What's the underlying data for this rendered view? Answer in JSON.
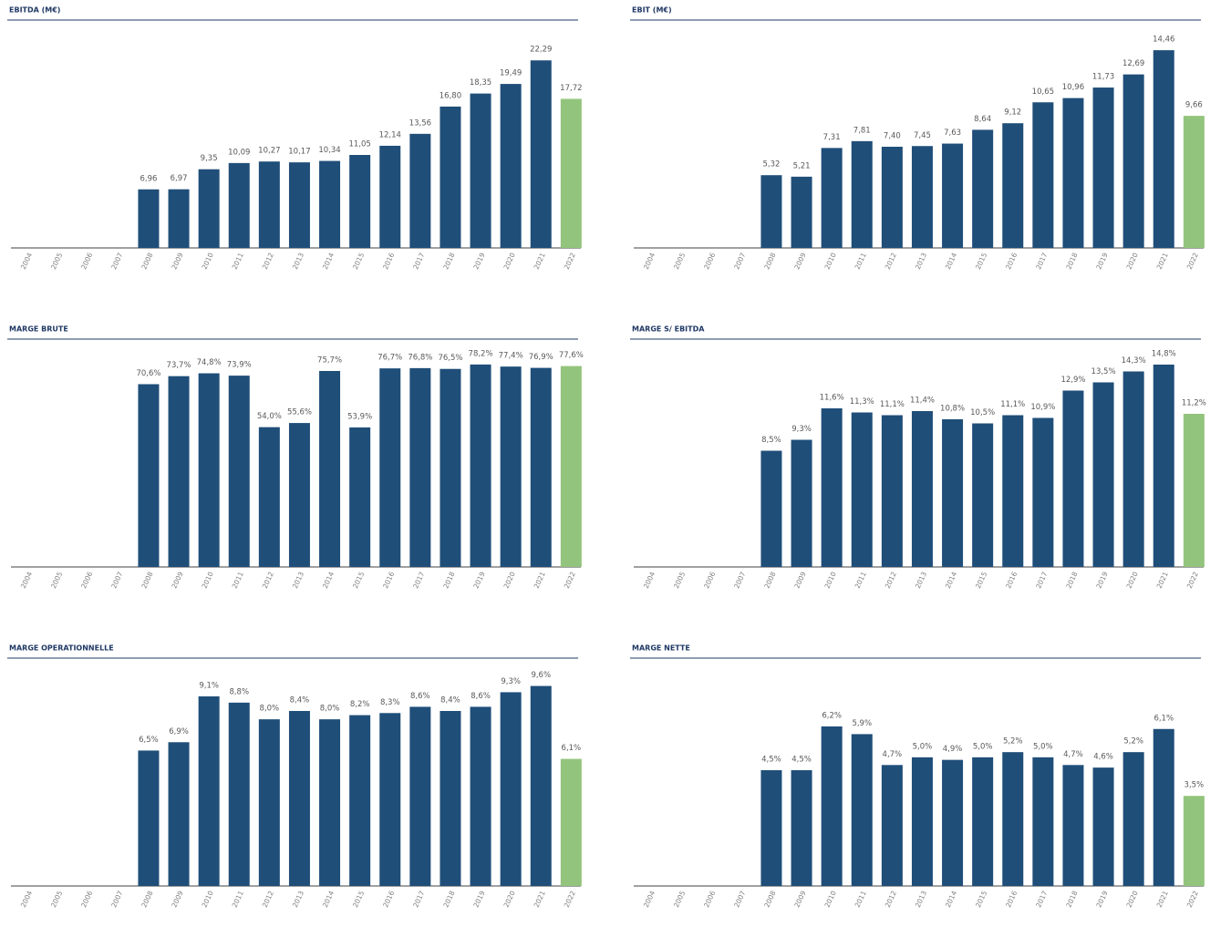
{
  "chart_data": [
    {
      "type": "bar",
      "title": "EBITDA (M€)",
      "categories": [
        "2004",
        "2005",
        "2006",
        "2007",
        "2008",
        "2009",
        "2010",
        "2011",
        "2012",
        "2013",
        "2014",
        "2015",
        "2016",
        "2017",
        "2018",
        "2019",
        "2020",
        "2021",
        "2022"
      ],
      "values": [
        null,
        null,
        null,
        null,
        6.96,
        6.97,
        9.35,
        10.09,
        10.27,
        10.17,
        10.34,
        11.05,
        12.14,
        13.56,
        16.8,
        18.35,
        19.49,
        22.29,
        17.72
      ],
      "value_labels": [
        null,
        null,
        null,
        null,
        "6,96",
        "6,97",
        "9,35",
        "10,09",
        "10,27",
        "10,17",
        "10,34",
        "11,05",
        "12,14",
        "13,56",
        "16,80",
        "18,35",
        "19,49",
        "22,29",
        "17,72"
      ],
      "colors": [
        null,
        null,
        null,
        null,
        "#1f4e79",
        "#1f4e79",
        "#1f4e79",
        "#1f4e79",
        "#1f4e79",
        "#1f4e79",
        "#1f4e79",
        "#1f4e79",
        "#1f4e79",
        "#1f4e79",
        "#1f4e79",
        "#1f4e79",
        "#1f4e79",
        "#1f4e79",
        "#93c47d"
      ],
      "ylim": [
        0,
        26
      ]
    },
    {
      "type": "bar",
      "title": "EBIT (M€)",
      "categories": [
        "2004",
        "2005",
        "2006",
        "2007",
        "2008",
        "2009",
        "2010",
        "2011",
        "2012",
        "2013",
        "2014",
        "2015",
        "2016",
        "2017",
        "2018",
        "2019",
        "2020",
        "2021",
        "2022"
      ],
      "values": [
        null,
        null,
        null,
        null,
        5.32,
        5.21,
        7.31,
        7.81,
        7.4,
        7.45,
        7.63,
        8.64,
        9.12,
        10.65,
        10.96,
        11.73,
        12.69,
        14.46,
        9.66
      ],
      "value_labels": [
        null,
        null,
        null,
        null,
        "5,32",
        "5,21",
        "7,31",
        "7,81",
        "7,40",
        "7,45",
        "7,63",
        "8,64",
        "9,12",
        "10,65",
        "10,96",
        "11,73",
        "12,69",
        "14,46",
        "9,66"
      ],
      "colors": [
        null,
        null,
        null,
        null,
        "#1f4e79",
        "#1f4e79",
        "#1f4e79",
        "#1f4e79",
        "#1f4e79",
        "#1f4e79",
        "#1f4e79",
        "#1f4e79",
        "#1f4e79",
        "#1f4e79",
        "#1f4e79",
        "#1f4e79",
        "#1f4e79",
        "#1f4e79",
        "#93c47d"
      ],
      "ylim": [
        0,
        16
      ]
    },
    {
      "type": "bar",
      "title": "MARGE BRUTE",
      "categories": [
        "2004",
        "2005",
        "2006",
        "2007",
        "2008",
        "2009",
        "2010",
        "2011",
        "2012",
        "2013",
        "2014",
        "2015",
        "2016",
        "2017",
        "2018",
        "2019",
        "2020",
        "2021",
        "2022"
      ],
      "values": [
        null,
        null,
        null,
        null,
        70.6,
        73.7,
        74.8,
        73.9,
        54.0,
        55.6,
        75.7,
        53.9,
        76.7,
        76.8,
        76.5,
        78.2,
        77.4,
        76.9,
        77.6
      ],
      "value_labels": [
        null,
        null,
        null,
        null,
        "70,6%",
        "73,7%",
        "74,8%",
        "73,9%",
        "54,0%",
        "55,6%",
        "75,7%",
        "53,9%",
        "76,7%",
        "76,8%",
        "76,5%",
        "78,2%",
        "77,4%",
        "76,9%",
        "77,6%"
      ],
      "colors": [
        null,
        null,
        null,
        null,
        "#1f4e79",
        "#1f4e79",
        "#1f4e79",
        "#1f4e79",
        "#1f4e79",
        "#1f4e79",
        "#1f4e79",
        "#1f4e79",
        "#1f4e79",
        "#1f4e79",
        "#1f4e79",
        "#1f4e79",
        "#1f4e79",
        "#1f4e79",
        "#93c47d"
      ],
      "ylim": [
        0,
        84.5
      ]
    },
    {
      "type": "bar",
      "title": "MARGE S/ EBITDA",
      "categories": [
        "2004",
        "2005",
        "2006",
        "2007",
        "2008",
        "2009",
        "2010",
        "2011",
        "2012",
        "2013",
        "2014",
        "2015",
        "2016",
        "2017",
        "2018",
        "2019",
        "2020",
        "2021",
        "2022"
      ],
      "values": [
        null,
        null,
        null,
        null,
        8.5,
        9.3,
        11.6,
        11.3,
        11.1,
        11.4,
        10.8,
        10.5,
        11.1,
        10.9,
        12.9,
        13.5,
        14.3,
        14.8,
        11.2
      ],
      "value_labels": [
        null,
        null,
        null,
        null,
        "8,5%",
        "9,3%",
        "11,6%",
        "11,3%",
        "11,1%",
        "11,4%",
        "10,8%",
        "10,5%",
        "11,1%",
        "10,9%",
        "12,9%",
        "13,5%",
        "14,3%",
        "14,8%",
        "11,2%"
      ],
      "colors": [
        null,
        null,
        null,
        null,
        "#1f4e79",
        "#1f4e79",
        "#1f4e79",
        "#1f4e79",
        "#1f4e79",
        "#1f4e79",
        "#1f4e79",
        "#1f4e79",
        "#1f4e79",
        "#1f4e79",
        "#1f4e79",
        "#1f4e79",
        "#1f4e79",
        "#1f4e79",
        "#93c47d"
      ],
      "ylim": [
        0,
        16
      ]
    },
    {
      "type": "bar",
      "title": "MARGE OPERATIONNELLE",
      "categories": [
        "2004",
        "2005",
        "2006",
        "2007",
        "2008",
        "2009",
        "2010",
        "2011",
        "2012",
        "2013",
        "2014",
        "2015",
        "2016",
        "2017",
        "2018",
        "2019",
        "2020",
        "2021",
        "2022"
      ],
      "values": [
        null,
        null,
        null,
        null,
        6.5,
        6.9,
        9.1,
        8.8,
        8.0,
        8.4,
        8.0,
        8.2,
        8.3,
        8.6,
        8.4,
        8.6,
        9.3,
        9.6,
        6.1
      ],
      "value_labels": [
        null,
        null,
        null,
        null,
        "6,5%",
        "6,9%",
        "9,1%",
        "8,8%",
        "8,0%",
        "8,4%",
        "8,0%",
        "8,2%",
        "8,3%",
        "8,6%",
        "8,4%",
        "8,6%",
        "9,3%",
        "9,6%",
        "6,1%"
      ],
      "colors": [
        null,
        null,
        null,
        null,
        "#1f4e79",
        "#1f4e79",
        "#1f4e79",
        "#1f4e79",
        "#1f4e79",
        "#1f4e79",
        "#1f4e79",
        "#1f4e79",
        "#1f4e79",
        "#1f4e79",
        "#1f4e79",
        "#1f4e79",
        "#1f4e79",
        "#1f4e79",
        "#93c47d"
      ],
      "ylim": [
        0,
        10.5
      ]
    },
    {
      "type": "bar",
      "title": "MARGE NETTE",
      "categories": [
        "2004",
        "2005",
        "2006",
        "2007",
        "2008",
        "2009",
        "2010",
        "2011",
        "2012",
        "2013",
        "2014",
        "2015",
        "2016",
        "2017",
        "2018",
        "2019",
        "2020",
        "2021",
        "2022"
      ],
      "values": [
        null,
        null,
        null,
        null,
        4.5,
        4.5,
        6.2,
        5.9,
        4.7,
        5.0,
        4.9,
        5.0,
        5.2,
        5.0,
        4.7,
        4.6,
        5.2,
        6.1,
        3.5
      ],
      "value_labels": [
        null,
        null,
        null,
        null,
        "4,5%",
        "4,5%",
        "6,2%",
        "5,9%",
        "4,7%",
        "5,0%",
        "4,9%",
        "5,0%",
        "5,2%",
        "5,0%",
        "4,7%",
        "4,6%",
        "5,2%",
        "6,1%",
        "3,5%"
      ],
      "colors": [
        null,
        null,
        null,
        null,
        "#1f4e79",
        "#1f4e79",
        "#1f4e79",
        "#1f4e79",
        "#1f4e79",
        "#1f4e79",
        "#1f4e79",
        "#1f4e79",
        "#1f4e79",
        "#1f4e79",
        "#1f4e79",
        "#1f4e79",
        "#1f4e79",
        "#1f4e79",
        "#93c47d"
      ],
      "ylim": [
        0,
        8.5
      ]
    }
  ]
}
